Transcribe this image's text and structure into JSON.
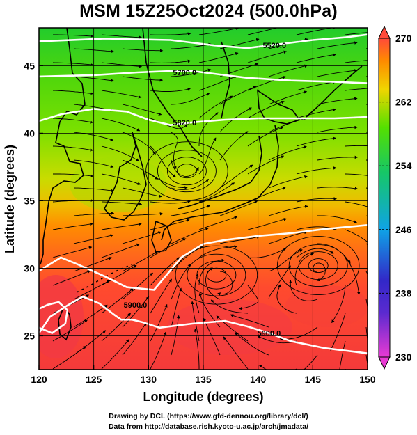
{
  "title": "MSM 15Z25Oct2024 (500.0hPa)",
  "chart_data": {
    "type": "map",
    "xlabel": "Longitude (degrees)",
    "ylabel": "Latitude  (degrees)",
    "xlim": [
      120,
      150
    ],
    "ylim": [
      22.5,
      47.8
    ],
    "xticks": [
      120,
      125,
      130,
      135,
      140,
      145,
      150
    ],
    "xtick_labels": [
      "120",
      "125",
      "130",
      "135",
      "140",
      "145",
      "150"
    ],
    "yticks": [
      25,
      30,
      35,
      40,
      45
    ],
    "ytick_labels": [
      "25",
      "30",
      "35",
      "40",
      "45"
    ],
    "grid": true,
    "colorbar": {
      "min": 230,
      "max": 270,
      "ticks": [
        230,
        238,
        246,
        254,
        262,
        270
      ],
      "tick_labels": [
        "230",
        "238",
        "246",
        "254",
        "262",
        "270"
      ],
      "colors": [
        "#e83ad3",
        "#3228c8",
        "#0fa3e6",
        "#16c766",
        "#54e000",
        "#f0d500",
        "#ff8a00",
        "#ff4a3a"
      ]
    },
    "contours": [
      {
        "label": "5520.0",
        "points": [
          [
            120,
            46.8
          ],
          [
            126,
            47.0
          ],
          [
            132,
            46.9
          ],
          [
            136,
            46.5
          ],
          [
            139,
            46.3
          ],
          [
            142,
            46.6
          ],
          [
            145,
            46.9
          ],
          [
            148,
            47.1
          ],
          [
            150,
            47.3
          ]
        ]
      },
      {
        "label": "5700.0",
        "points": [
          [
            120,
            44.2
          ],
          [
            125,
            44.3
          ],
          [
            129,
            44.5
          ],
          [
            132,
            44.6
          ],
          [
            134,
            44.6
          ],
          [
            136,
            44.4
          ],
          [
            139,
            44.1
          ],
          [
            143,
            43.9
          ],
          [
            147,
            43.8
          ],
          [
            150,
            43.7
          ]
        ]
      },
      {
        "label": "5820.0",
        "points": [
          [
            120,
            40.9
          ],
          [
            122,
            41.4
          ],
          [
            125,
            41.8
          ],
          [
            128,
            41.6
          ],
          [
            130,
            41.0
          ],
          [
            132,
            40.6
          ],
          [
            134,
            40.8
          ],
          [
            137,
            41.0
          ],
          [
            140,
            41.1
          ],
          [
            143,
            41.1
          ],
          [
            147,
            41.1
          ],
          [
            150,
            41.2
          ]
        ]
      },
      {
        "label": "5880.0",
        "points": [
          [
            120,
            29.8
          ],
          [
            122,
            30.8
          ],
          [
            123.5,
            30.3
          ],
          [
            126,
            29.4
          ],
          [
            128,
            28.6
          ],
          [
            130.5,
            28.4
          ],
          [
            133,
            30.8
          ],
          [
            135,
            31.8
          ],
          [
            137,
            32.1
          ],
          [
            140,
            32.4
          ],
          [
            143,
            32.6
          ],
          [
            146,
            32.9
          ],
          [
            150,
            33.2
          ]
        ]
      },
      {
        "label": "5900.0",
        "points": [
          [
            120,
            25.2
          ],
          [
            121,
            26.4
          ],
          [
            122.5,
            27.2
          ],
          [
            124,
            27.9
          ],
          [
            125.5,
            27.4
          ],
          [
            126.8,
            26.6
          ],
          [
            127.5,
            26.2
          ],
          [
            128.5,
            26.2
          ],
          [
            129.5,
            26.0
          ],
          [
            131,
            25.6
          ],
          [
            134,
            25.9
          ],
          [
            137,
            26.1
          ],
          [
            139,
            25.7
          ],
          [
            141,
            25.2
          ],
          [
            143,
            24.6
          ],
          [
            146,
            24.1
          ],
          [
            150,
            23.7
          ]
        ]
      },
      {
        "label": "5900.0",
        "points": [
          [
            120,
            25.6
          ],
          [
            121.2,
            25.2
          ],
          [
            122.4,
            25.9
          ],
          [
            122.6,
            26.9
          ],
          [
            121.8,
            27.5
          ],
          [
            120.8,
            27.3
          ],
          [
            120,
            27.0
          ]
        ]
      }
    ],
    "contour_label_positions": [
      {
        "text": "5520.0",
        "lon": 141.5,
        "lat": 46.5
      },
      {
        "text": "5700.0",
        "lon": 133.3,
        "lat": 44.5
      },
      {
        "text": "5820.0",
        "lon": 133.3,
        "lat": 40.8
      },
      {
        "text": "5900.0",
        "lon": 128.8,
        "lat": 27.3
      },
      {
        "text": "5900.0",
        "lon": 141.0,
        "lat": 25.2
      }
    ],
    "vortices": [
      {
        "lon": 145.5,
        "lat": 30.2,
        "rotation": "cw"
      },
      {
        "lon": 136.2,
        "lat": 29.5,
        "rotation": "cw"
      },
      {
        "lon": 133.5,
        "lat": 37.2,
        "rotation": "ccw"
      }
    ]
  },
  "credits": {
    "line1": "Drawing by DCL (https://www.gfd-dennou.org/library/dcl/)",
    "line2": "Data from http://database.rish.kyoto-u.ac.jp/arch/jmadata/"
  }
}
